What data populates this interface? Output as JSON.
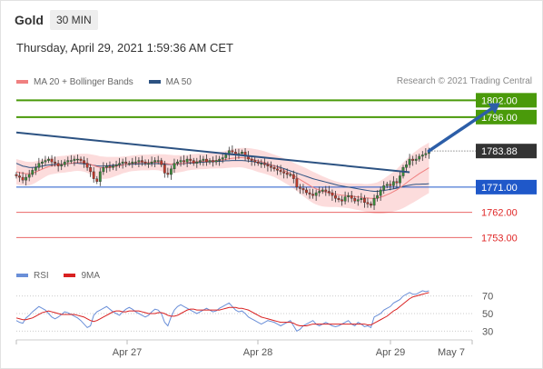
{
  "header": {
    "title": "Gold",
    "timeframe": "30 MIN",
    "datetime": "Thursday, April 29, 2021 1:59:36 AM CET",
    "copyright": "Research © 2021 Trading Central"
  },
  "legend": {
    "main": [
      {
        "name": "MA 20 + Bollinger Bands",
        "color": "#f08080"
      },
      {
        "name": "MA 50",
        "color": "#2c5282"
      }
    ],
    "rsi": [
      {
        "name": "RSI",
        "color": "#6a8fd8"
      },
      {
        "name": "9MA",
        "color": "#d92121"
      }
    ]
  },
  "colors": {
    "resistance": "#4a9a0a",
    "support": "#1f58c9",
    "target": "#e02828",
    "current": "#333333",
    "trendline": "#2c5282",
    "arrow": "#2c5ea8",
    "bollinger_fill": "#fbd6d6",
    "candle_up": "#3a8a3a",
    "candle_down": "#c0392b"
  },
  "chart_data": [
    {
      "type": "candlestick",
      "title": "Gold",
      "ylim": [
        1745,
        1806
      ],
      "x_ticks": [
        "Apr 27",
        "Apr 28",
        "Apr 29",
        "May 7"
      ],
      "price_levels": [
        {
          "value": 1802.0,
          "label": "1802.00",
          "kind": "resistance"
        },
        {
          "value": 1796.0,
          "label": "1796.00",
          "kind": "resistance"
        },
        {
          "value": 1783.88,
          "label": "1783.88",
          "kind": "current"
        },
        {
          "value": 1771.0,
          "label": "1771.00",
          "kind": "support"
        },
        {
          "value": 1762.0,
          "label": "1762.00",
          "kind": "target"
        },
        {
          "value": 1753.0,
          "label": "1753.00",
          "kind": "target"
        }
      ],
      "close": [
        1775.0,
        1774.5,
        1773.5,
        1774.5,
        1775.5,
        1777.0,
        1778.0,
        1779.5,
        1780.0,
        1780.5,
        1781.0,
        1780.0,
        1779.5,
        1778.5,
        1779.0,
        1780.0,
        1780.5,
        1780.5,
        1781.0,
        1781.0,
        1780.5,
        1779.5,
        1778.0,
        1776.5,
        1774.0,
        1773.0,
        1776.5,
        1778.0,
        1778.5,
        1778.0,
        1778.5,
        1779.0,
        1779.5,
        1780.0,
        1779.5,
        1779.5,
        1780.0,
        1780.0,
        1780.5,
        1780.0,
        1779.5,
        1779.5,
        1780.0,
        1780.5,
        1780.5,
        1779.0,
        1776.0,
        1775.5,
        1777.5,
        1779.5,
        1780.0,
        1780.5,
        1780.0,
        1781.0,
        1780.5,
        1779.5,
        1780.0,
        1780.5,
        1781.0,
        1780.0,
        1780.5,
        1780.0,
        1780.5,
        1781.0,
        1781.5,
        1782.5,
        1784.0,
        1783.5,
        1782.5,
        1783.0,
        1783.5,
        1782.0,
        1781.0,
        1780.5,
        1780.0,
        1779.5,
        1779.5,
        1779.0,
        1778.5,
        1778.0,
        1777.5,
        1777.0,
        1776.5,
        1776.0,
        1775.5,
        1775.5,
        1774.0,
        1771.0,
        1770.5,
        1770.0,
        1769.0,
        1768.5,
        1768.0,
        1769.0,
        1769.5,
        1770.0,
        1769.5,
        1769.0,
        1768.0,
        1767.0,
        1766.5,
        1766.0,
        1767.5,
        1768.0,
        1767.0,
        1766.0,
        1766.5,
        1767.0,
        1765.5,
        1765.0,
        1764.5,
        1767.0,
        1768.0,
        1770.0,
        1771.5,
        1772.0,
        1771.5,
        1773.0,
        1772.5,
        1775.0,
        1778.0,
        1779.0,
        1781.0,
        1780.5,
        1781.0,
        1782.0,
        1782.5,
        1783.0,
        1783.88
      ],
      "ma50": [
        1779.5,
        1779.0,
        1778.5,
        1778.3,
        1778.0,
        1778.0,
        1778.1,
        1778.3,
        1778.5,
        1778.7,
        1778.9,
        1779.0,
        1779.1,
        1779.1,
        1779.2,
        1779.3,
        1779.4,
        1779.5,
        1779.5,
        1779.5,
        1779.4,
        1779.3,
        1779.2,
        1779.0,
        1778.8,
        1778.6,
        1778.5,
        1778.5,
        1778.6,
        1778.7,
        1778.8,
        1778.9,
        1779.0,
        1779.0,
        1779.1,
        1779.1,
        1779.2,
        1779.2,
        1779.3,
        1779.3,
        1779.3,
        1779.3,
        1779.3,
        1779.4,
        1779.4,
        1779.3,
        1779.2,
        1779.1,
        1779.1,
        1779.1,
        1779.2,
        1779.3,
        1779.4,
        1779.5,
        1779.6,
        1779.7,
        1779.7,
        1779.8,
        1779.9,
        1780.0,
        1780.0,
        1780.1,
        1780.2,
        1780.2,
        1780.3,
        1780.4,
        1780.4,
        1780.5,
        1780.5,
        1780.5,
        1780.5,
        1780.4,
        1780.3,
        1780.2,
        1780.0,
        1779.8,
        1779.6,
        1779.4,
        1779.2,
        1778.9,
        1778.6,
        1778.3,
        1778.0,
        1777.6,
        1777.2,
        1776.8,
        1776.4,
        1776.0,
        1775.6,
        1775.2,
        1774.8,
        1774.4,
        1774.0,
        1773.7,
        1773.4,
        1773.1,
        1772.8,
        1772.5,
        1772.2,
        1771.9,
        1771.6,
        1771.4,
        1771.2,
        1771.0,
        1770.8,
        1770.6,
        1770.4,
        1770.2,
        1770.0,
        1769.8,
        1769.6,
        1769.5,
        1769.5,
        1769.6,
        1769.8,
        1770.0,
        1770.2,
        1770.4,
        1770.6,
        1770.9,
        1771.2,
        1771.5,
        1771.7,
        1771.9,
        1772.0,
        1772.0,
        1772.1,
        1772.1,
        1772.2
      ],
      "ma20": [
        1776.5,
        1776.2,
        1776.0,
        1775.8,
        1775.8,
        1776.0,
        1776.4,
        1776.9,
        1777.4,
        1777.9,
        1778.3,
        1778.6,
        1778.8,
        1779.0,
        1779.1,
        1779.2,
        1779.4,
        1779.5,
        1779.7,
        1779.8,
        1779.8,
        1779.7,
        1779.5,
        1779.1,
        1778.7,
        1778.3,
        1778.0,
        1777.9,
        1777.9,
        1778.0,
        1778.2,
        1778.4,
        1778.6,
        1778.9,
        1779.1,
        1779.3,
        1779.5,
        1779.6,
        1779.7,
        1779.8,
        1779.8,
        1779.8,
        1779.9,
        1779.9,
        1779.9,
        1779.7,
        1779.5,
        1779.3,
        1779.2,
        1779.2,
        1779.3,
        1779.4,
        1779.5,
        1779.7,
        1779.9,
        1780.0,
        1780.1,
        1780.2,
        1780.2,
        1780.3,
        1780.4,
        1780.4,
        1780.5,
        1780.6,
        1780.7,
        1780.9,
        1781.1,
        1781.3,
        1781.4,
        1781.5,
        1781.5,
        1781.4,
        1781.2,
        1781.0,
        1780.7,
        1780.4,
        1780.1,
        1779.8,
        1779.4,
        1779.0,
        1778.6,
        1778.1,
        1777.6,
        1777.0,
        1776.4,
        1775.8,
        1775.1,
        1774.4,
        1773.7,
        1773.0,
        1772.3,
        1771.6,
        1770.9,
        1770.4,
        1769.9,
        1769.5,
        1769.2,
        1768.9,
        1768.7,
        1768.5,
        1768.3,
        1768.1,
        1768.0,
        1767.9,
        1767.8,
        1767.6,
        1767.5,
        1767.4,
        1767.2,
        1767.1,
        1767.0,
        1767.0,
        1767.1,
        1767.4,
        1767.8,
        1768.3,
        1768.8,
        1769.4,
        1770.0,
        1770.8,
        1771.6,
        1772.5,
        1773.4,
        1774.2,
        1775.0,
        1775.8,
        1776.5,
        1777.2,
        1777.9
      ],
      "bollinger_width": [
        4.5,
        4.5,
        4.4,
        4.3,
        4.2,
        4.0,
        3.8,
        3.6,
        3.4,
        3.2,
        3.0,
        3.0,
        3.0,
        3.0,
        3.0,
        3.0,
        3.0,
        3.0,
        3.0,
        3.0,
        3.1,
        3.2,
        3.4,
        3.6,
        3.8,
        4.0,
        4.0,
        4.0,
        3.9,
        3.8,
        3.6,
        3.4,
        3.2,
        3.0,
        2.9,
        2.8,
        2.8,
        2.8,
        2.8,
        2.8,
        2.8,
        2.8,
        2.8,
        2.8,
        2.9,
        3.0,
        3.2,
        3.3,
        3.3,
        3.2,
        3.1,
        3.0,
        2.9,
        2.8,
        2.8,
        2.8,
        2.8,
        2.8,
        2.8,
        2.8,
        2.8,
        2.8,
        2.8,
        2.9,
        3.0,
        3.1,
        3.2,
        3.3,
        3.4,
        3.4,
        3.5,
        3.6,
        3.7,
        3.8,
        3.9,
        4.0,
        4.0,
        4.0,
        4.0,
        4.0,
        4.0,
        4.1,
        4.2,
        4.3,
        4.4,
        4.5,
        4.6,
        4.8,
        5.0,
        5.2,
        5.4,
        5.5,
        5.6,
        5.6,
        5.5,
        5.4,
        5.2,
        5.0,
        4.8,
        4.6,
        4.5,
        4.4,
        4.4,
        4.4,
        4.5,
        4.6,
        4.7,
        4.8,
        4.9,
        5.0,
        5.2,
        5.4,
        5.6,
        5.9,
        6.2,
        6.5,
        6.8,
        7.1,
        7.4,
        7.8,
        8.1,
        8.4,
        8.6,
        8.8,
        8.9,
        9.0,
        9.0,
        9.0,
        9.0
      ],
      "trendline": [
        {
          "i": 0,
          "v": 1790.5
        },
        {
          "i": 122,
          "v": 1776.3
        }
      ],
      "target_arrow": {
        "from": {
          "i": 128,
          "v": 1783.9
        },
        "to": {
          "i": 150,
          "v": 1801.0
        }
      }
    },
    {
      "type": "line",
      "title": "RSI",
      "ylim": [
        22,
        78
      ],
      "y_ticks": [
        30,
        50,
        70
      ],
      "rsi": [
        42,
        40,
        39,
        45,
        48,
        52,
        55,
        58,
        56,
        54,
        50,
        46,
        44,
        46,
        49,
        52,
        51,
        49,
        47,
        45,
        42,
        38,
        34,
        36,
        48,
        52,
        54,
        56,
        58,
        55,
        52,
        50,
        48,
        52,
        55,
        57,
        55,
        52,
        50,
        48,
        46,
        48,
        52,
        55,
        54,
        50,
        40,
        36,
        46,
        54,
        58,
        60,
        58,
        56,
        54,
        52,
        50,
        52,
        54,
        56,
        54,
        52,
        53,
        56,
        58,
        60,
        62,
        58,
        54,
        52,
        53,
        50,
        46,
        44,
        42,
        40,
        38,
        40,
        42,
        41,
        40,
        38,
        36,
        38,
        40,
        42,
        36,
        30,
        32,
        36,
        38,
        40,
        42,
        38,
        36,
        38,
        40,
        38,
        36,
        35,
        36,
        38,
        40,
        42,
        38,
        36,
        40,
        38,
        35,
        36,
        34,
        46,
        48,
        50,
        54,
        56,
        58,
        62,
        64,
        66,
        70,
        72,
        74,
        72,
        72,
        74,
        76,
        75,
        76
      ],
      "ma9": [
        45,
        44,
        43,
        43,
        44,
        45,
        47,
        49,
        51,
        52,
        53,
        52,
        51,
        50,
        49,
        49,
        49,
        49,
        49,
        48,
        47,
        46,
        44,
        42,
        41,
        42,
        44,
        46,
        48,
        50,
        52,
        53,
        53,
        52,
        52,
        53,
        53,
        53,
        53,
        52,
        51,
        50,
        50,
        50,
        51,
        51,
        50,
        48,
        47,
        47,
        48,
        50,
        52,
        54,
        55,
        55,
        54,
        54,
        54,
        54,
        54,
        54,
        54,
        54,
        55,
        56,
        57,
        57,
        57,
        56,
        56,
        55,
        54,
        52,
        50,
        48,
        46,
        45,
        44,
        43,
        42,
        41,
        40,
        40,
        40,
        40,
        39,
        37,
        36,
        36,
        36,
        37,
        38,
        38,
        38,
        38,
        38,
        38,
        38,
        38,
        38,
        38,
        38,
        38,
        38,
        38,
        38,
        38,
        38,
        37,
        37,
        39,
        41,
        43,
        45,
        47,
        50,
        53,
        55,
        58,
        61,
        64,
        67,
        69,
        70,
        71,
        72,
        73,
        74
      ]
    }
  ]
}
